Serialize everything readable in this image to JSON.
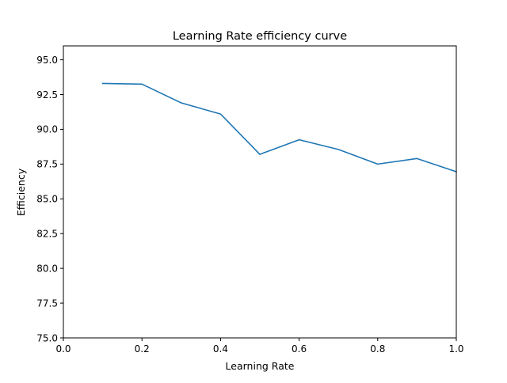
{
  "chart_data": {
    "type": "line",
    "title": "Learning Rate efficiency curve",
    "xlabel": "Learning Rate",
    "ylabel": "Efficiency",
    "xlim": [
      0.0,
      1.0
    ],
    "ylim": [
      75.0,
      96.0
    ],
    "xticks": [
      0.0,
      0.2,
      0.4,
      0.6,
      0.8,
      1.0
    ],
    "xtick_labels": [
      "0.0",
      "0.2",
      "0.4",
      "0.6",
      "0.8",
      "1.0"
    ],
    "yticks": [
      75.0,
      77.5,
      80.0,
      82.5,
      85.0,
      87.5,
      90.0,
      92.5,
      95.0
    ],
    "ytick_labels": [
      "75.0",
      "77.5",
      "80.0",
      "82.5",
      "85.0",
      "87.5",
      "90.0",
      "92.5",
      "95.0"
    ],
    "grid": false,
    "legend": false,
    "series": [
      {
        "color": "#1f77b4",
        "x": [
          0.1,
          0.2,
          0.3,
          0.4,
          0.5,
          0.6,
          0.7,
          0.8,
          0.9,
          1.0
        ],
        "y": [
          93.3,
          93.25,
          91.9,
          91.1,
          88.2,
          89.25,
          88.55,
          87.5,
          87.9,
          86.95
        ]
      }
    ]
  }
}
